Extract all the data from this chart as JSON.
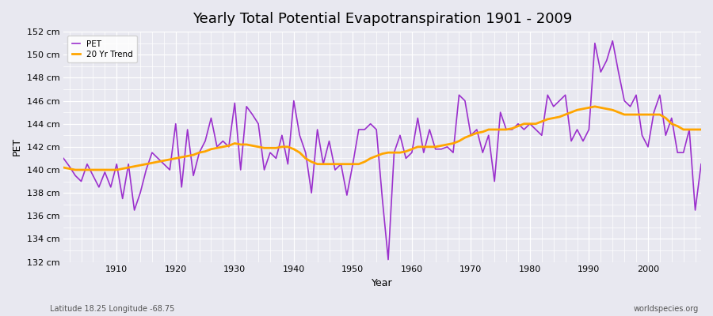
{
  "title": "Yearly Total Potential Evapotranspiration 1901 - 2009",
  "xlabel": "Year",
  "ylabel": "PET",
  "subtitle": "Latitude 18.25 Longitude -68.75",
  "watermark": "worldspecies.org",
  "pet_color": "#9B30CD",
  "trend_color": "#FFA500",
  "background_color": "#E8E8F0",
  "plot_bg_color": "#E8E8F0",
  "ylim": [
    132,
    152
  ],
  "ytick_step": 2,
  "years": [
    1901,
    1902,
    1903,
    1904,
    1905,
    1906,
    1907,
    1908,
    1909,
    1910,
    1911,
    1912,
    1913,
    1914,
    1915,
    1916,
    1917,
    1918,
    1919,
    1920,
    1921,
    1922,
    1923,
    1924,
    1925,
    1926,
    1927,
    1928,
    1929,
    1930,
    1931,
    1932,
    1933,
    1934,
    1935,
    1936,
    1937,
    1938,
    1939,
    1940,
    1941,
    1942,
    1943,
    1944,
    1945,
    1946,
    1947,
    1948,
    1949,
    1950,
    1951,
    1952,
    1953,
    1954,
    1955,
    1956,
    1957,
    1958,
    1959,
    1960,
    1961,
    1962,
    1963,
    1964,
    1965,
    1966,
    1967,
    1968,
    1969,
    1970,
    1971,
    1972,
    1973,
    1974,
    1975,
    1976,
    1977,
    1978,
    1979,
    1980,
    1981,
    1982,
    1983,
    1984,
    1985,
    1986,
    1987,
    1988,
    1989,
    1990,
    1991,
    1992,
    1993,
    1994,
    1995,
    1996,
    1997,
    1998,
    1999,
    2000,
    2001,
    2002,
    2003,
    2004,
    2005,
    2006,
    2007,
    2008,
    2009
  ],
  "pet_values": [
    141.0,
    140.3,
    139.5,
    139.0,
    140.5,
    139.5,
    138.5,
    139.8,
    138.5,
    140.5,
    137.5,
    140.5,
    136.5,
    138.0,
    140.0,
    141.5,
    141.0,
    140.5,
    140.0,
    144.0,
    138.5,
    143.5,
    139.5,
    141.5,
    142.5,
    144.5,
    142.0,
    142.5,
    142.0,
    145.8,
    140.0,
    145.5,
    144.8,
    144.0,
    140.0,
    141.5,
    141.0,
    143.0,
    140.5,
    146.0,
    143.0,
    141.5,
    138.0,
    143.5,
    140.5,
    142.5,
    140.0,
    140.5,
    137.8,
    140.5,
    143.5,
    143.5,
    144.0,
    143.5,
    137.5,
    132.2,
    141.5,
    143.0,
    141.0,
    141.5,
    144.5,
    141.5,
    143.5,
    141.8,
    141.8,
    142.0,
    141.5,
    146.5,
    146.0,
    143.0,
    143.5,
    141.5,
    143.0,
    139.0,
    145.0,
    143.5,
    143.5,
    144.0,
    143.5,
    144.0,
    143.5,
    143.0,
    146.5,
    145.5,
    146.0,
    146.5,
    142.5,
    143.5,
    142.5,
    143.5,
    151.0,
    148.5,
    149.5,
    151.2,
    148.5,
    146.0,
    145.5,
    146.5,
    143.0,
    142.0,
    145.0,
    146.5,
    143.0,
    144.5,
    141.5,
    141.5,
    143.5,
    136.5,
    140.5
  ],
  "trend_years": [
    1901,
    1902,
    1903,
    1904,
    1905,
    1906,
    1907,
    1908,
    1909,
    1910,
    1911,
    1912,
    1913,
    1914,
    1915,
    1916,
    1917,
    1918,
    1919,
    1920,
    1921,
    1922,
    1923,
    1924,
    1925,
    1926,
    1927,
    1928,
    1929,
    1930,
    1931,
    1932,
    1933,
    1934,
    1935,
    1936,
    1937,
    1938,
    1939,
    1940,
    1941,
    1942,
    1943,
    1944,
    1945,
    1946,
    1947,
    1948,
    1949,
    1950,
    1951,
    1952,
    1953,
    1954,
    1955,
    1956,
    1957,
    1958,
    1959,
    1960,
    1961,
    1962,
    1963,
    1964,
    1965,
    1966,
    1967,
    1968,
    1969,
    1970,
    1971,
    1972,
    1973,
    1974,
    1975,
    1976,
    1977,
    1978,
    1979,
    1980,
    1981,
    1982,
    1983,
    1984,
    1985,
    1986,
    1987,
    1988,
    1989,
    1990,
    1991,
    1992,
    1993,
    1994,
    1995,
    1996,
    1997,
    1998,
    1999,
    2000,
    2001,
    2002,
    2003,
    2004,
    2005,
    2006,
    2007,
    2008,
    2009
  ],
  "trend_values": [
    140.2,
    140.1,
    140.0,
    140.0,
    140.0,
    140.0,
    140.0,
    140.0,
    140.0,
    140.0,
    140.1,
    140.2,
    140.3,
    140.4,
    140.5,
    140.6,
    140.7,
    140.8,
    140.9,
    141.0,
    141.1,
    141.2,
    141.3,
    141.5,
    141.6,
    141.8,
    141.9,
    142.0,
    142.1,
    142.3,
    142.2,
    142.2,
    142.1,
    142.0,
    141.9,
    141.9,
    141.9,
    142.0,
    142.0,
    141.8,
    141.5,
    141.0,
    140.7,
    140.5,
    140.5,
    140.5,
    140.5,
    140.5,
    140.5,
    140.5,
    140.5,
    140.7,
    141.0,
    141.2,
    141.4,
    141.5,
    141.5,
    141.5,
    141.6,
    141.8,
    142.0,
    142.0,
    142.0,
    142.0,
    142.1,
    142.2,
    142.3,
    142.5,
    142.8,
    143.0,
    143.2,
    143.3,
    143.5,
    143.5,
    143.5,
    143.5,
    143.6,
    143.8,
    144.0,
    144.0,
    144.0,
    144.2,
    144.4,
    144.5,
    144.6,
    144.8,
    145.0,
    145.2,
    145.3,
    145.4,
    145.5,
    145.4,
    145.3,
    145.2,
    145.0,
    144.8,
    144.8,
    144.8,
    144.8,
    144.8,
    144.8,
    144.8,
    144.5,
    144.0,
    143.8,
    143.5,
    143.5,
    143.5,
    143.5
  ]
}
